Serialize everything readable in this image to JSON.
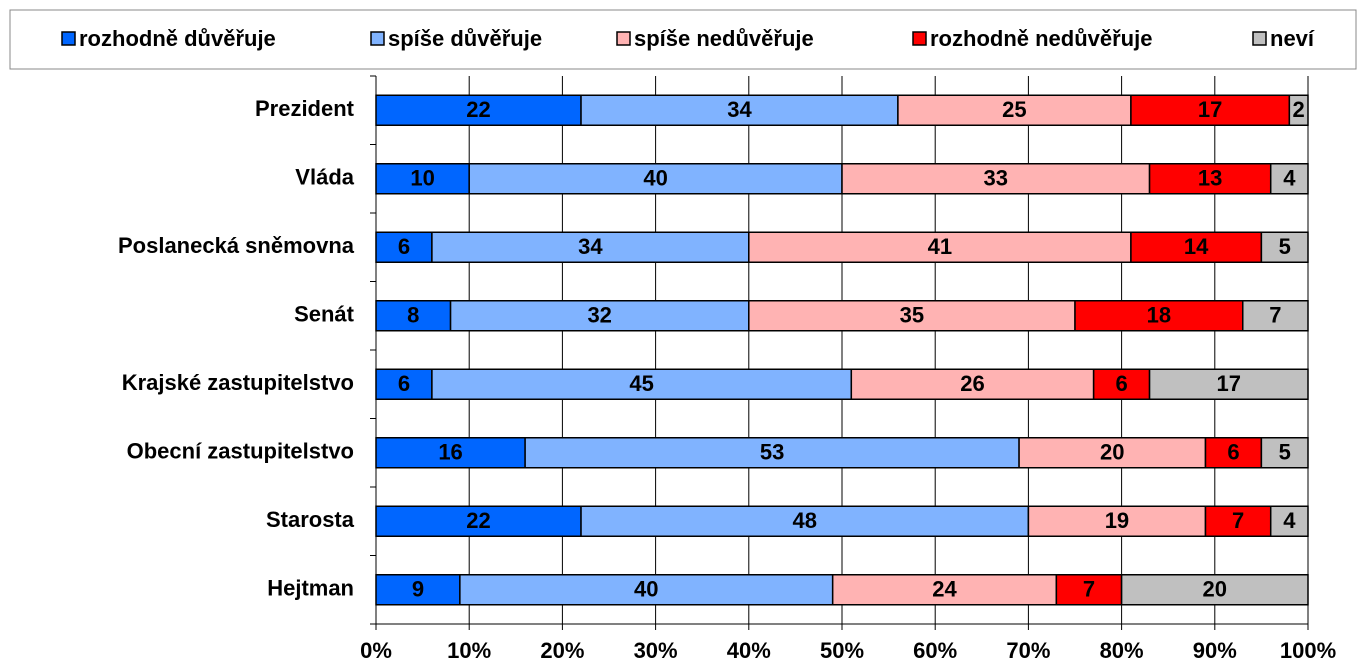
{
  "chart_data": {
    "type": "stacked-bar-horizontal",
    "legend": "top",
    "grid": true,
    "categories": [
      "Prezident",
      "Vláda",
      "Poslanecká sněmovna",
      "Senát",
      "Krajské zastupitelstvo",
      "Obecní zastupitelstvo",
      "Starosta",
      "Hejtman"
    ],
    "series": [
      {
        "name": "rozhodně důvěřuje",
        "color": "#0066ff",
        "values": [
          22,
          10,
          6,
          8,
          6,
          16,
          22,
          9
        ]
      },
      {
        "name": "spíše důvěřuje",
        "color": "#80b3ff",
        "values": [
          34,
          40,
          34,
          32,
          45,
          53,
          48,
          40
        ]
      },
      {
        "name": "spíše nedůvěřuje",
        "color": "#ffb3b3",
        "values": [
          25,
          33,
          41,
          35,
          26,
          20,
          19,
          24
        ]
      },
      {
        "name": "rozhodně nedůvěřuje",
        "color": "#ff0000",
        "values": [
          17,
          13,
          14,
          18,
          6,
          6,
          7,
          7
        ]
      },
      {
        "name": "neví",
        "color": "#c0c0c0",
        "values": [
          2,
          4,
          5,
          7,
          17,
          5,
          4,
          20
        ]
      }
    ],
    "xlim": [
      0,
      100
    ],
    "xticks": [
      {
        "value": 0,
        "label": "0%"
      },
      {
        "value": 10,
        "label": "10%"
      },
      {
        "value": 20,
        "label": "20%"
      },
      {
        "value": 30,
        "label": "30%"
      },
      {
        "value": 40,
        "label": "40%"
      },
      {
        "value": 50,
        "label": "50%"
      },
      {
        "value": 60,
        "label": "60%"
      },
      {
        "value": 70,
        "label": "70%"
      },
      {
        "value": 80,
        "label": "80%"
      },
      {
        "value": 90,
        "label": "90%"
      },
      {
        "value": 100,
        "label": "100%"
      }
    ]
  }
}
